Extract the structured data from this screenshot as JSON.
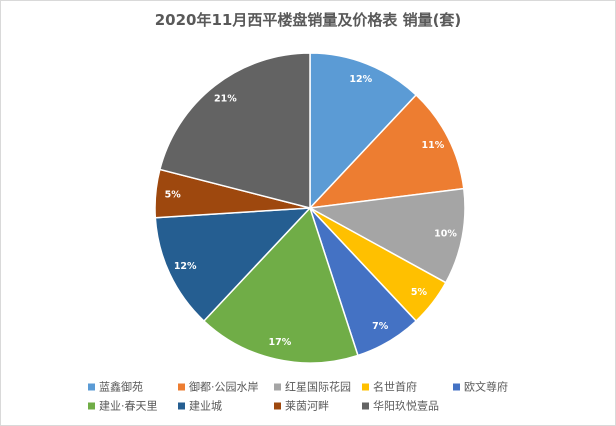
{
  "chart_data": {
    "type": "pie",
    "title": "2020年11月西平楼盘销量及价格表 销量(套)",
    "categories": [
      "蓝鑫御苑",
      "御都·公园水岸",
      "红星国际花园",
      "名世首府",
      "欧文尊府",
      "建业·春天里",
      "建业城",
      "莱茵河畔",
      "华阳玖悦壹品"
    ],
    "values": [
      12,
      11,
      10,
      5,
      7,
      17,
      12,
      5,
      21
    ],
    "data_labels": [
      "12%",
      "11%",
      "10%",
      "5%",
      "7%",
      "17%",
      "12%",
      "5%",
      "21%"
    ],
    "colors": [
      "#5B9BD5",
      "#ED7D31",
      "#A5A5A5",
      "#FFC000",
      "#4472C4",
      "#70AD47",
      "#255E91",
      "#9E480E",
      "#636363"
    ],
    "label_color": "#FFFFFF",
    "legend_placement": "bottom"
  }
}
